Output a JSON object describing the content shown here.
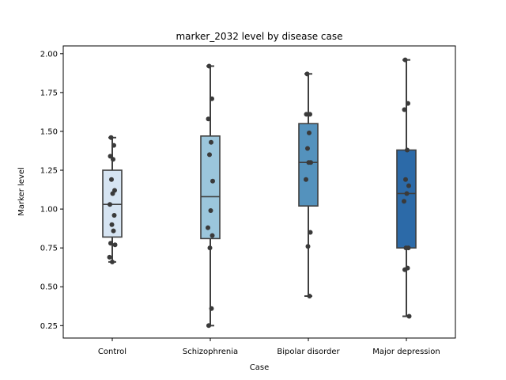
{
  "chart_data": {
    "type": "box",
    "title": "marker_2032 level by disease case",
    "xlabel": "Case",
    "ylabel": "Marker level",
    "ylim": [
      0.17,
      2.05
    ],
    "yticks": [
      "0.25",
      "0.50",
      "0.75",
      "1.00",
      "1.25",
      "1.50",
      "1.75",
      "2.00"
    ],
    "grid": false,
    "categories": [
      "Control",
      "Schizophrenia",
      "Bipolar disorder",
      "Major depression"
    ],
    "colors": [
      "#d6e4f2",
      "#9bc6dc",
      "#5492bd",
      "#2c6aa8"
    ],
    "boxes": [
      {
        "q1": 0.82,
        "median": 1.03,
        "q3": 1.25,
        "whisker_low": 0.66,
        "whisker_high": 1.46
      },
      {
        "q1": 0.81,
        "median": 1.08,
        "q3": 1.47,
        "whisker_low": 0.25,
        "whisker_high": 1.92
      },
      {
        "q1": 1.02,
        "median": 1.3,
        "q3": 1.55,
        "whisker_low": 0.44,
        "whisker_high": 1.87
      },
      {
        "q1": 0.75,
        "median": 1.1,
        "q3": 1.38,
        "whisker_low": 0.31,
        "whisker_high": 1.96
      }
    ],
    "points": [
      {
        "category": 0,
        "values": [
          1.46,
          1.41,
          1.34,
          1.32,
          1.19,
          1.12,
          1.1,
          1.03,
          0.96,
          0.9,
          0.86,
          0.78,
          0.77,
          0.69,
          0.66
        ]
      },
      {
        "category": 1,
        "values": [
          1.92,
          1.71,
          1.58,
          1.43,
          1.35,
          1.18,
          0.99,
          0.88,
          0.83,
          0.75,
          0.36,
          0.25
        ]
      },
      {
        "category": 2,
        "values": [
          1.87,
          1.61,
          1.61,
          1.49,
          1.39,
          1.3,
          1.3,
          1.19,
          0.85,
          0.76,
          0.44
        ]
      },
      {
        "category": 3,
        "values": [
          1.96,
          1.68,
          1.64,
          1.38,
          1.19,
          1.15,
          1.1,
          1.05,
          0.75,
          0.75,
          0.62,
          0.61,
          0.31
        ]
      }
    ]
  }
}
